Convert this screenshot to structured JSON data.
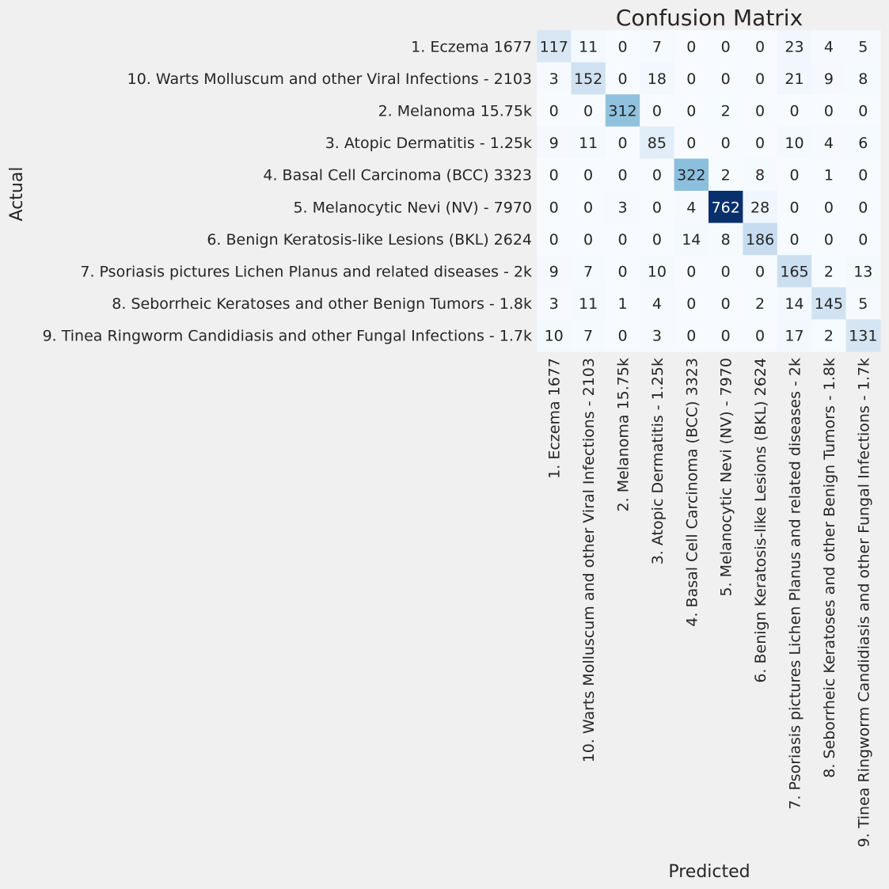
{
  "chart_data": {
    "type": "heatmap",
    "title": "Confusion Matrix",
    "xlabel": "Predicted",
    "ylabel": "Actual",
    "row_labels": [
      "1. Eczema 1677",
      "10. Warts Molluscum and other Viral Infections - 2103",
      "2. Melanoma 15.75k",
      "3. Atopic Dermatitis - 1.25k",
      "4. Basal Cell Carcinoma (BCC) 3323",
      "5. Melanocytic Nevi (NV) - 7970",
      "6. Benign Keratosis-like Lesions (BKL) 2624",
      "7. Psoriasis pictures Lichen Planus and related diseases - 2k",
      "8. Seborrheic Keratoses and other Benign Tumors - 1.8k",
      "9. Tinea Ringworm Candidiasis and other Fungal Infections - 1.7k"
    ],
    "col_labels": [
      "1. Eczema 1677",
      "10. Warts Molluscum and other Viral Infections - 2103",
      "2. Melanoma 15.75k",
      "3. Atopic Dermatitis - 1.25k",
      "4. Basal Cell Carcinoma (BCC) 3323",
      "5. Melanocytic Nevi (NV) - 7970",
      "6. Benign Keratosis-like Lesions (BKL) 2624",
      "7. Psoriasis pictures Lichen Planus and related diseases - 2k",
      "8. Seborrheic Keratoses and other Benign Tumors - 1.8k",
      "9. Tinea Ringworm Candidiasis and other Fungal Infections - 1.7k"
    ],
    "values": [
      [
        117,
        11,
        0,
        7,
        0,
        0,
        0,
        23,
        4,
        5
      ],
      [
        3,
        152,
        0,
        18,
        0,
        0,
        0,
        21,
        9,
        8
      ],
      [
        0,
        0,
        312,
        0,
        0,
        2,
        0,
        0,
        0,
        0
      ],
      [
        9,
        11,
        0,
        85,
        0,
        0,
        0,
        10,
        4,
        6
      ],
      [
        0,
        0,
        0,
        0,
        322,
        2,
        8,
        0,
        1,
        0
      ],
      [
        0,
        0,
        3,
        0,
        4,
        762,
        28,
        0,
        0,
        0
      ],
      [
        0,
        0,
        0,
        0,
        14,
        8,
        186,
        0,
        0,
        0
      ],
      [
        9,
        7,
        0,
        10,
        0,
        0,
        0,
        165,
        2,
        13
      ],
      [
        3,
        11,
        1,
        4,
        0,
        0,
        2,
        14,
        145,
        5
      ],
      [
        10,
        7,
        0,
        3,
        0,
        0,
        0,
        17,
        2,
        131
      ]
    ],
    "colormap": "Blues",
    "vmin": 0,
    "vmax": 762,
    "colorbar": false,
    "grid": false,
    "colors": {
      "background": "#f0f0f0",
      "text_dark": "#262626",
      "text_light": "#ffffff"
    }
  }
}
